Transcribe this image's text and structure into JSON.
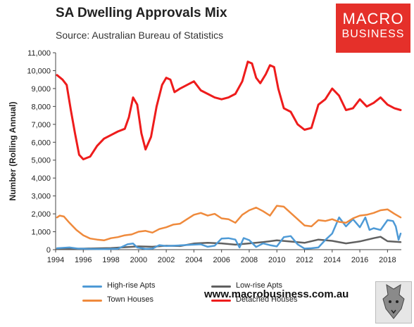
{
  "header": {
    "title": "SA Dwelling Approvals Mix",
    "subtitle": "Source: Australian Bureau of Statistics"
  },
  "logo": {
    "line1": "MACRO",
    "line2": "BUSINESS"
  },
  "footer": {
    "website": "www.macrobusiness.com.au"
  },
  "colors": {
    "high_rise": "#4e9ad6",
    "low_rise": "#606060",
    "town_houses": "#ef8a3c",
    "detached": "#ee1c1c",
    "logo_bg": "#e5302a"
  },
  "chart_data": {
    "type": "line",
    "title": "SA Dwelling Approvals Mix",
    "subtitle": "Source: Australian Bureau of Statistics",
    "xlabel": "",
    "ylabel": "Number (Rolling Annual)",
    "xlim": [
      1994,
      2019
    ],
    "ylim": [
      0,
      11000
    ],
    "x_ticks": [
      "1994",
      "1996",
      "1998",
      "2000",
      "2002",
      "2004",
      "2006",
      "2008",
      "2010",
      "2012",
      "2014",
      "2016",
      "2018"
    ],
    "y_ticks": [
      "0",
      "1,000",
      "2,000",
      "3,000",
      "4,000",
      "5,000",
      "6,000",
      "7,000",
      "8,000",
      "9,000",
      "10,000",
      "11,000"
    ],
    "grid": false,
    "legend_position": "bottom",
    "series": [
      {
        "name": "High-rise Apts",
        "color": "#4e9ad6",
        "points": [
          [
            1994.1,
            80
          ],
          [
            1995,
            120
          ],
          [
            1995.6,
            60
          ],
          [
            1996.5,
            40
          ],
          [
            1997.5,
            30
          ],
          [
            1998.5,
            50
          ],
          [
            1999.2,
            300
          ],
          [
            1999.6,
            340
          ],
          [
            1999.9,
            120
          ],
          [
            2000.5,
            40
          ],
          [
            2001,
            60
          ],
          [
            2001.5,
            250
          ],
          [
            2002,
            200
          ],
          [
            2003,
            240
          ],
          [
            2004,
            280
          ],
          [
            2004.5,
            300
          ],
          [
            2005,
            160
          ],
          [
            2005.5,
            220
          ],
          [
            2006,
            620
          ],
          [
            2006.5,
            640
          ],
          [
            2007,
            560
          ],
          [
            2007.3,
            120
          ],
          [
            2007.6,
            650
          ],
          [
            2008,
            530
          ],
          [
            2008.5,
            150
          ],
          [
            2009,
            350
          ],
          [
            2009.5,
            250
          ],
          [
            2010,
            180
          ],
          [
            2010.5,
            700
          ],
          [
            2011,
            760
          ],
          [
            2011.5,
            300
          ],
          [
            2012,
            60
          ],
          [
            2012.5,
            80
          ],
          [
            2013,
            120
          ],
          [
            2013.5,
            540
          ],
          [
            2014,
            900
          ],
          [
            2014.5,
            1800
          ],
          [
            2015,
            1300
          ],
          [
            2015.5,
            1700
          ],
          [
            2016,
            1250
          ],
          [
            2016.4,
            1800
          ],
          [
            2016.7,
            1100
          ],
          [
            2017,
            1200
          ],
          [
            2017.5,
            1100
          ],
          [
            2018,
            1650
          ],
          [
            2018.4,
            1600
          ],
          [
            2018.6,
            1300
          ],
          [
            2018.8,
            550
          ],
          [
            2018.95,
            900
          ]
        ]
      },
      {
        "name": "Low-rise Apts",
        "color": "#606060",
        "points": [
          [
            1994.1,
            40
          ],
          [
            1996,
            60
          ],
          [
            1998,
            90
          ],
          [
            2000,
            180
          ],
          [
            2001,
            160
          ],
          [
            2002,
            220
          ],
          [
            2003,
            200
          ],
          [
            2004,
            340
          ],
          [
            2005,
            380
          ],
          [
            2006,
            350
          ],
          [
            2007,
            280
          ],
          [
            2008,
            350
          ],
          [
            2009,
            420
          ],
          [
            2010,
            520
          ],
          [
            2011,
            450
          ],
          [
            2012,
            380
          ],
          [
            2013,
            560
          ],
          [
            2014,
            490
          ],
          [
            2015,
            350
          ],
          [
            2016,
            460
          ],
          [
            2017,
            640
          ],
          [
            2017.5,
            720
          ],
          [
            2018,
            470
          ],
          [
            2018.95,
            420
          ]
        ]
      },
      {
        "name": "Town Houses",
        "color": "#ef8a3c",
        "points": [
          [
            1994.1,
            1800
          ],
          [
            1994.3,
            1900
          ],
          [
            1994.6,
            1850
          ],
          [
            1995,
            1500
          ],
          [
            1995.5,
            1100
          ],
          [
            1996,
            800
          ],
          [
            1996.5,
            620
          ],
          [
            1997,
            560
          ],
          [
            1997.5,
            520
          ],
          [
            1998,
            640
          ],
          [
            1998.5,
            700
          ],
          [
            1999,
            800
          ],
          [
            1999.5,
            850
          ],
          [
            2000,
            1000
          ],
          [
            2000.5,
            1050
          ],
          [
            2001,
            950
          ],
          [
            2001.5,
            1150
          ],
          [
            2002,
            1250
          ],
          [
            2002.5,
            1400
          ],
          [
            2003,
            1450
          ],
          [
            2003.5,
            1700
          ],
          [
            2004,
            1950
          ],
          [
            2004.5,
            2050
          ],
          [
            2005,
            1900
          ],
          [
            2005.5,
            2000
          ],
          [
            2006,
            1750
          ],
          [
            2006.5,
            1700
          ],
          [
            2007,
            1500
          ],
          [
            2007.5,
            1950
          ],
          [
            2008,
            2200
          ],
          [
            2008.5,
            2350
          ],
          [
            2009,
            2150
          ],
          [
            2009.5,
            1900
          ],
          [
            2010,
            2450
          ],
          [
            2010.5,
            2400
          ],
          [
            2011,
            2050
          ],
          [
            2011.5,
            1700
          ],
          [
            2012,
            1350
          ],
          [
            2012.5,
            1300
          ],
          [
            2013,
            1650
          ],
          [
            2013.5,
            1600
          ],
          [
            2014,
            1700
          ],
          [
            2014.5,
            1550
          ],
          [
            2015,
            1500
          ],
          [
            2015.5,
            1750
          ],
          [
            2016,
            1900
          ],
          [
            2016.5,
            1950
          ],
          [
            2017,
            2050
          ],
          [
            2017.5,
            2200
          ],
          [
            2018,
            2250
          ],
          [
            2018.5,
            2000
          ],
          [
            2018.95,
            1800
          ]
        ]
      },
      {
        "name": "Detached Houses",
        "color": "#ee1c1c",
        "points": [
          [
            1994.1,
            9750
          ],
          [
            1994.5,
            9500
          ],
          [
            1994.8,
            9200
          ],
          [
            1995.1,
            7800
          ],
          [
            1995.4,
            6500
          ],
          [
            1995.7,
            5300
          ],
          [
            1996,
            5050
          ],
          [
            1996.5,
            5200
          ],
          [
            1997,
            5800
          ],
          [
            1997.5,
            6200
          ],
          [
            1998,
            6400
          ],
          [
            1998.5,
            6600
          ],
          [
            1999,
            6750
          ],
          [
            1999.3,
            7400
          ],
          [
            1999.6,
            8500
          ],
          [
            1999.9,
            8100
          ],
          [
            2000.2,
            6500
          ],
          [
            2000.5,
            5600
          ],
          [
            2000.9,
            6300
          ],
          [
            2001.3,
            8000
          ],
          [
            2001.7,
            9200
          ],
          [
            2002,
            9600
          ],
          [
            2002.3,
            9500
          ],
          [
            2002.6,
            8800
          ],
          [
            2003,
            9000
          ],
          [
            2003.5,
            9200
          ],
          [
            2004,
            9400
          ],
          [
            2004.5,
            8900
          ],
          [
            2005,
            8700
          ],
          [
            2005.5,
            8500
          ],
          [
            2006,
            8400
          ],
          [
            2006.5,
            8500
          ],
          [
            2007,
            8700
          ],
          [
            2007.5,
            9400
          ],
          [
            2007.9,
            10500
          ],
          [
            2008.2,
            10400
          ],
          [
            2008.5,
            9600
          ],
          [
            2008.8,
            9300
          ],
          [
            2009.2,
            9800
          ],
          [
            2009.5,
            10300
          ],
          [
            2009.8,
            10200
          ],
          [
            2010.1,
            9000
          ],
          [
            2010.5,
            7900
          ],
          [
            2011,
            7700
          ],
          [
            2011.5,
            7000
          ],
          [
            2012,
            6700
          ],
          [
            2012.5,
            6800
          ],
          [
            2013,
            8100
          ],
          [
            2013.5,
            8400
          ],
          [
            2014,
            9000
          ],
          [
            2014.5,
            8600
          ],
          [
            2015,
            7800
          ],
          [
            2015.5,
            7900
          ],
          [
            2016,
            8400
          ],
          [
            2016.5,
            8000
          ],
          [
            2017,
            8200
          ],
          [
            2017.5,
            8500
          ],
          [
            2018,
            8100
          ],
          [
            2018.5,
            7900
          ],
          [
            2018.95,
            7800
          ]
        ]
      }
    ]
  }
}
